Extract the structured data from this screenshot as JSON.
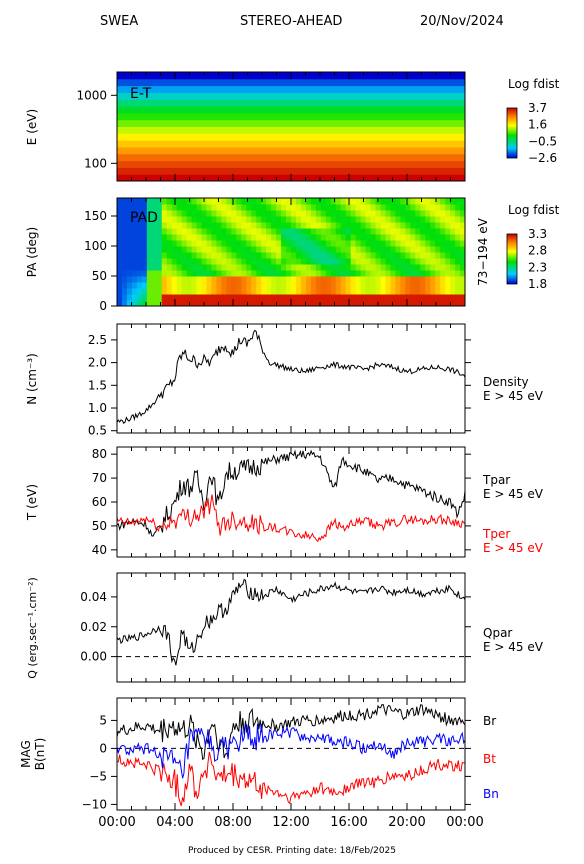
{
  "header": {
    "instrument": "SWEA",
    "spacecraft": "STEREO-AHEAD",
    "date": "20/Nov/2024"
  },
  "footer": "Produced by CESR.    Printing date: 18/Feb/2025",
  "x_ticks": [
    "00:00",
    "04:00",
    "08:00",
    "12:00",
    "16:00",
    "20:00",
    "00:00"
  ],
  "chart_data": [
    {
      "type": "heatmap",
      "panel_label": "E-T",
      "ylabel": "E (eV)",
      "yscale": "log",
      "ylim": [
        55,
        2200
      ],
      "y_ticks": [
        "1000",
        "100"
      ],
      "colorbar": {
        "title": "Log fdist",
        "ticks": [
          "3.7",
          "1.6",
          "−0.5",
          "−2.6"
        ],
        "range": [
          -2.6,
          3.7
        ]
      },
      "energy_band_values": [
        3.7,
        3.4,
        3.1,
        2.8,
        2.4,
        2.0,
        1.6,
        1.2,
        0.8,
        0.4,
        0.0,
        -0.5,
        -1.0,
        -1.6,
        -2.1,
        -2.6
      ]
    },
    {
      "type": "heatmap",
      "panel_label": "PAD",
      "ylabel": "PA (deg)",
      "ylim": [
        0,
        180
      ],
      "y_ticks": [
        "150",
        "100",
        "50",
        "0"
      ],
      "right_label": "73−194 eV",
      "colorbar": {
        "title": "Log fdist",
        "ticks": [
          "3.3",
          "2.8",
          "2.3",
          "1.8"
        ],
        "range": [
          1.8,
          3.3
        ]
      }
    },
    {
      "type": "line",
      "ylabel": "N (cm⁻³)",
      "ylim": [
        0.45,
        2.85
      ],
      "y_ticks": [
        "2.5",
        "2.0",
        "1.5",
        "1.0",
        "0.5"
      ],
      "series": [
        {
          "name": "Density",
          "sublabel": "E > 45 eV",
          "color": "#000000",
          "x": [
            0,
            0.5,
            1,
            1.5,
            2,
            2.5,
            3,
            3.5,
            4,
            4.3,
            4.6,
            5,
            5.5,
            6,
            6.5,
            7,
            7.5,
            8,
            8.5,
            9,
            9.5,
            10,
            10.5,
            11,
            12,
            13,
            14,
            15,
            16,
            17,
            18,
            19,
            20,
            21,
            22,
            23,
            23.7,
            24
          ],
          "values": [
            0.7,
            0.72,
            0.78,
            0.85,
            0.95,
            1.1,
            1.3,
            1.45,
            1.65,
            2.1,
            2.2,
            2.1,
            2.0,
            2.05,
            2.0,
            2.3,
            2.4,
            2.2,
            2.5,
            2.4,
            2.7,
            2.3,
            2.0,
            1.95,
            1.85,
            1.8,
            1.9,
            1.95,
            1.9,
            1.85,
            1.95,
            1.9,
            1.8,
            1.85,
            1.9,
            1.85,
            1.75,
            1.7
          ]
        }
      ]
    },
    {
      "type": "line",
      "ylabel": "T (eV)",
      "ylim": [
        37,
        83
      ],
      "y_ticks": [
        "80",
        "70",
        "60",
        "50",
        "40"
      ],
      "series": [
        {
          "name": "Tpar",
          "sublabel": "E > 45 eV",
          "color": "#000000",
          "x": [
            0,
            1,
            2,
            2.5,
            3,
            3.5,
            4,
            4.5,
            5,
            5.5,
            6,
            6.5,
            7,
            7.5,
            8,
            9,
            10,
            11,
            12,
            13,
            14,
            14.5,
            15,
            15.5,
            16,
            17,
            18,
            19,
            20,
            21,
            22,
            23,
            23.5,
            24
          ],
          "values": [
            50,
            52,
            51,
            45,
            50,
            55,
            60,
            68,
            66,
            70,
            60,
            73,
            58,
            72,
            73,
            74,
            76,
            78,
            79,
            80,
            79,
            72,
            65,
            78,
            76,
            73,
            69,
            70,
            67,
            65,
            62,
            60,
            55,
            63
          ]
        },
        {
          "name": "Tper",
          "sublabel": "E > 45 eV",
          "color": "#ff0000",
          "x": [
            0,
            1,
            2,
            3,
            4,
            5,
            6,
            6.5,
            7,
            8,
            9,
            10,
            11,
            12,
            13,
            14,
            14.5,
            15,
            15.5,
            16,
            17,
            18,
            19,
            20,
            21,
            22,
            23,
            24
          ],
          "values": [
            52,
            51,
            53,
            49,
            53,
            54,
            56,
            60,
            50,
            53,
            52,
            50,
            49,
            47,
            46,
            45,
            48,
            52,
            49,
            50,
            52,
            50,
            51,
            53,
            52,
            53,
            52,
            51
          ]
        }
      ]
    },
    {
      "type": "line",
      "ylabel": "Q (erg.sec⁻¹.cm⁻²)",
      "ylim": [
        -0.017,
        0.056
      ],
      "y_ticks": [
        "0.04",
        "0.02",
        "0.00"
      ],
      "series": [
        {
          "name": "Qpar",
          "sublabel": "E > 45 eV",
          "color": "#000000",
          "x": [
            0,
            1,
            2,
            3,
            3.5,
            4,
            4.5,
            5,
            5.5,
            6,
            6.5,
            7,
            7.5,
            8,
            8.5,
            9,
            10,
            11,
            12,
            13,
            14,
            15,
            16,
            17,
            18,
            19,
            20,
            21,
            22,
            23,
            23.7,
            24
          ],
          "values": [
            0.011,
            0.012,
            0.015,
            0.02,
            0.015,
            -0.008,
            0.018,
            0.002,
            0.01,
            0.022,
            0.025,
            0.03,
            0.032,
            0.04,
            0.048,
            0.045,
            0.04,
            0.045,
            0.038,
            0.042,
            0.045,
            0.048,
            0.044,
            0.042,
            0.046,
            0.043,
            0.045,
            0.042,
            0.044,
            0.046,
            0.04,
            0.038
          ]
        }
      ],
      "zero_line": true
    },
    {
      "type": "line",
      "ylabel": "MAG B(nT)",
      "ylim": [
        -11,
        9
      ],
      "y_ticks": [
        "5",
        "0",
        "−5",
        "−10"
      ],
      "series": [
        {
          "name": "Br",
          "color": "#000000",
          "x": [
            0,
            1,
            2,
            3,
            3.5,
            4,
            4.5,
            5,
            5.5,
            6,
            6.5,
            7,
            7.5,
            8,
            9,
            10,
            11,
            12,
            13,
            14,
            15,
            16,
            17,
            18,
            19,
            20,
            21,
            22,
            23,
            24
          ],
          "values": [
            3,
            3.5,
            4,
            3,
            4,
            4,
            3,
            4,
            2,
            -1,
            5,
            2,
            -2,
            4,
            5,
            4.5,
            4,
            4.5,
            5,
            5,
            5.5,
            6,
            6,
            7,
            6.5,
            6,
            7,
            6,
            5,
            5
          ]
        },
        {
          "name": "Bt",
          "color": "#ff0000",
          "x": [
            0,
            1,
            2,
            3,
            4,
            4.5,
            5,
            5.5,
            6,
            6.5,
            7,
            7.5,
            8,
            9,
            10,
            11,
            12,
            13,
            14,
            15,
            16,
            17,
            18,
            19,
            20,
            21,
            22,
            23,
            24
          ],
          "values": [
            -2,
            -2.5,
            -3,
            -4,
            -6,
            -9,
            -3,
            -8,
            -4,
            -2,
            -6,
            -5,
            -5,
            -6,
            -7,
            -8,
            -9,
            -8,
            -7,
            -8,
            -7,
            -6,
            -6,
            -5,
            -5,
            -4,
            -3,
            -3,
            -3
          ]
        },
        {
          "name": "Bn",
          "color": "#0000ff",
          "x": [
            0,
            1,
            2,
            3,
            3.5,
            4,
            4.5,
            5,
            6,
            7,
            8,
            9,
            10,
            11,
            12,
            13,
            14,
            15,
            16,
            17,
            18,
            19,
            20,
            21,
            22,
            23,
            24
          ],
          "values": [
            0,
            -0.5,
            0,
            -1,
            -2,
            -3,
            -5,
            1,
            2,
            -1,
            1,
            2,
            2,
            2.5,
            3,
            2,
            2,
            1,
            1,
            0,
            1,
            -1,
            1,
            1,
            2,
            1,
            2
          ]
        }
      ],
      "zero_line": true
    }
  ]
}
